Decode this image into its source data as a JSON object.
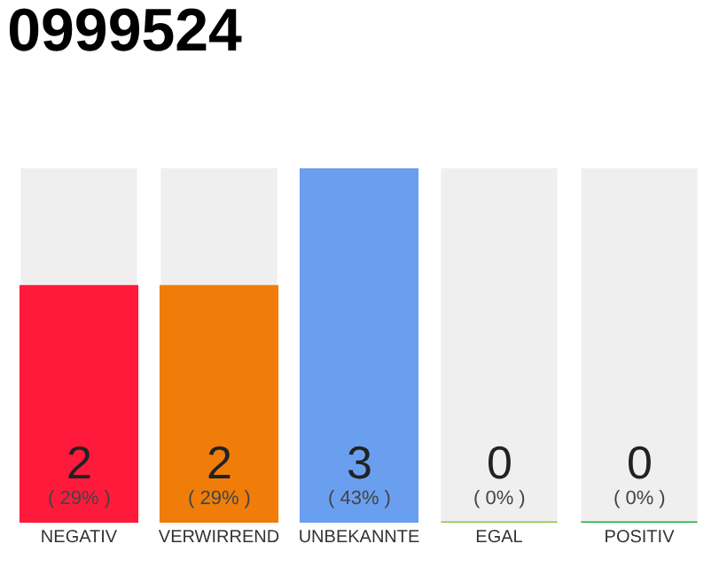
{
  "chart_data": {
    "type": "bar",
    "title": "0999524",
    "categories": [
      "NEGATIV",
      "VERWIRREND",
      "UNBEKANNTE",
      "EGAL",
      "POSITIV"
    ],
    "values": [
      2,
      2,
      3,
      0,
      0
    ],
    "colors": [
      "#ff1a3c",
      "#f07d0a",
      "#6a9ff0",
      "#8bc34a",
      "#22aa44"
    ],
    "ylim": [
      0,
      3
    ],
    "tick_labels": "x",
    "grid": false,
    "value_labels": [
      "2\n( 29% )",
      "2\n( 29% )",
      "3\n( 43% )",
      "0\n( 0% )",
      "0\n( 0% )"
    ]
  }
}
